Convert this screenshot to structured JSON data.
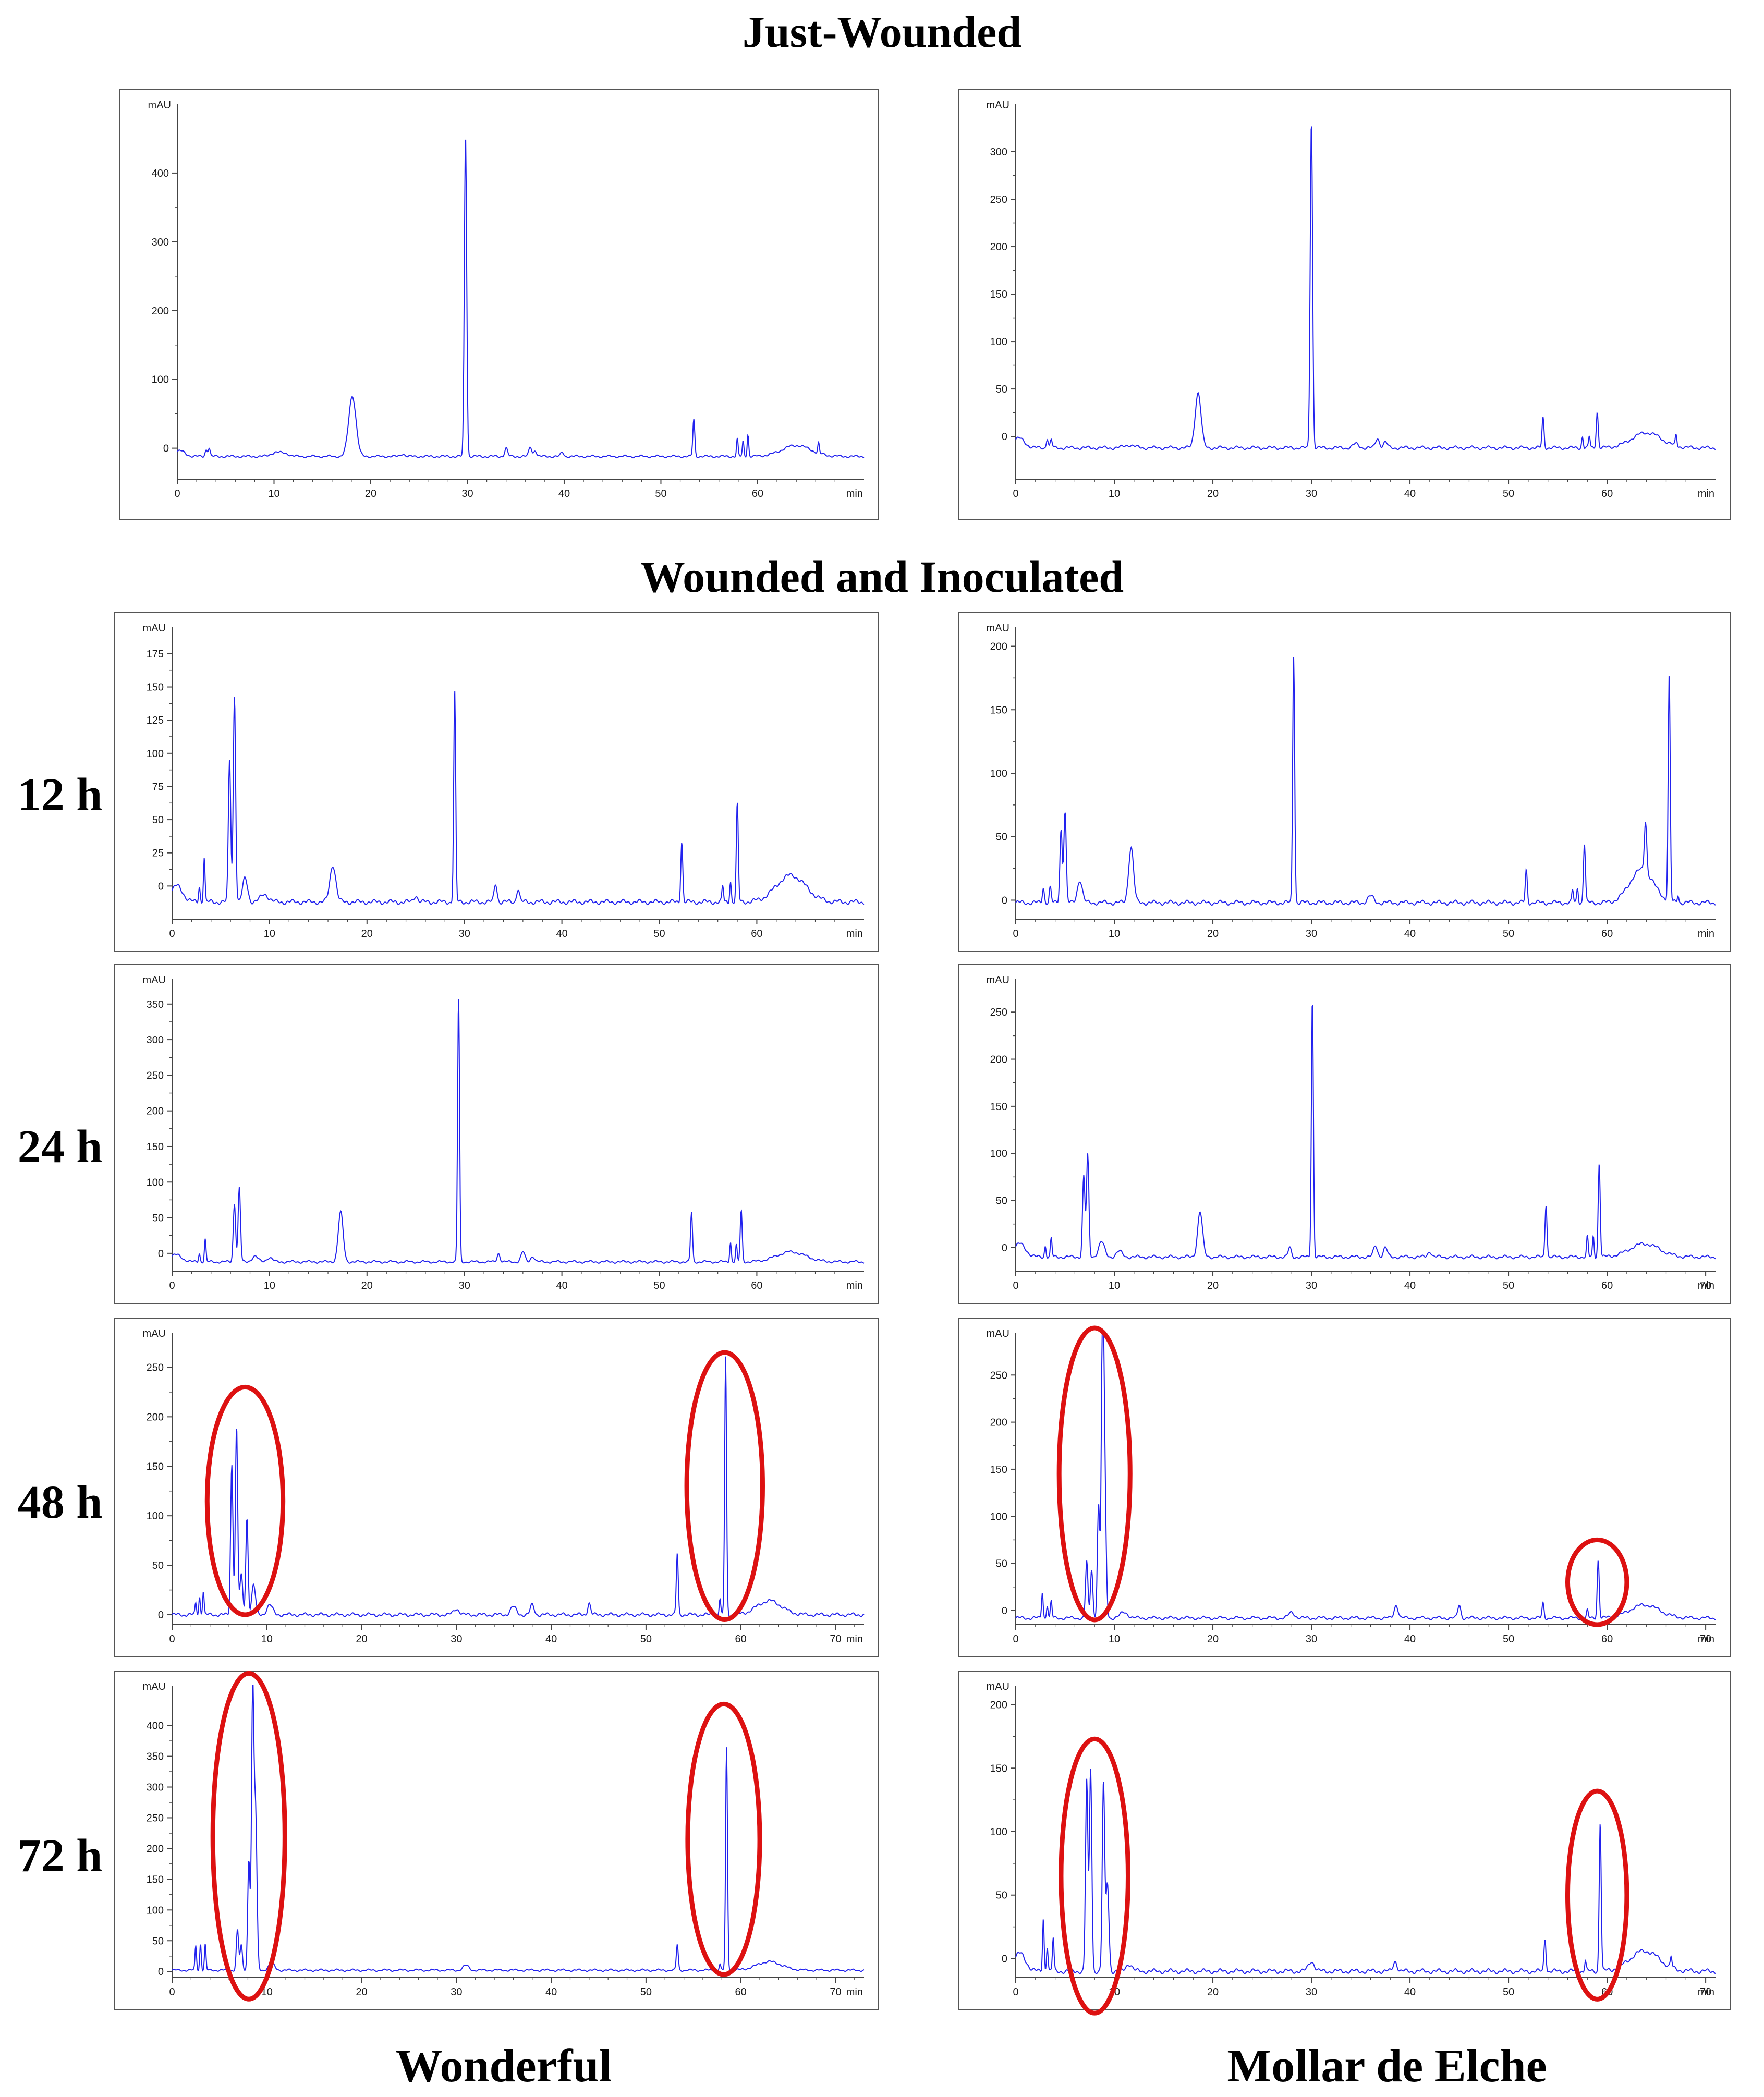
{
  "headers": {
    "just_wounded": "Just-Wounded",
    "wounded_inoculated": "Wounded and Inoculated"
  },
  "row_labels": [
    "12 h",
    "24 h",
    "48 h",
    "72 h"
  ],
  "column_labels": [
    "Wonderful",
    "Mollar de Elche"
  ],
  "colors": {
    "trace": "#2222ee",
    "highlight": "#dd1111",
    "axis": "#444444"
  },
  "chart_data": [
    {
      "id": "jw-wonderful",
      "type": "line",
      "title": "Just-Wounded / Wonderful",
      "xlabel": "min",
      "ylabel": "mAU",
      "xlim": [
        0,
        71
      ],
      "ylim": [
        -45,
        500
      ],
      "xticks": [
        0,
        10,
        20,
        30,
        40,
        50,
        60
      ],
      "yticks": [
        0,
        100,
        200,
        300,
        400
      ],
      "baseline": -12,
      "peaks": [
        [
          0.3,
          8,
          0.5
        ],
        [
          3.0,
          10,
          0.12
        ],
        [
          3.3,
          12,
          0.1
        ],
        [
          10.2,
          6,
          0.5
        ],
        [
          11.2,
          4,
          0.4
        ],
        [
          18.1,
          88,
          0.38
        ],
        [
          23.3,
          4,
          0.2
        ],
        [
          29.8,
          468,
          0.12
        ],
        [
          34.0,
          12,
          0.15
        ],
        [
          36.5,
          14,
          0.15
        ],
        [
          37.0,
          9,
          0.15
        ],
        [
          39.8,
          6,
          0.15
        ],
        [
          53.4,
          54,
          0.1
        ],
        [
          57.9,
          26,
          0.08
        ],
        [
          58.5,
          22,
          0.08
        ],
        [
          59.0,
          32,
          0.08
        ],
        [
          64.0,
          16,
          1.5
        ],
        [
          66.3,
          15,
          0.08
        ]
      ],
      "highlights": []
    },
    {
      "id": "jw-mollar",
      "type": "line",
      "title": "Just-Wounded / Mollar de Elche",
      "xlabel": "min",
      "ylabel": "mAU",
      "xlim": [
        0,
        71
      ],
      "ylim": [
        -45,
        350
      ],
      "xticks": [
        0,
        10,
        20,
        30,
        40,
        50,
        60
      ],
      "yticks": [
        0,
        50,
        100,
        150,
        200,
        250,
        300
      ],
      "baseline": -12,
      "peaks": [
        [
          0.3,
          10,
          0.6
        ],
        [
          3.2,
          10,
          0.1
        ],
        [
          3.6,
          8,
          0.1
        ],
        [
          11.5,
          3,
          0.5
        ],
        [
          18.5,
          58,
          0.3
        ],
        [
          30.0,
          346,
          0.12
        ],
        [
          34.5,
          4,
          0.3
        ],
        [
          36.7,
          10,
          0.2
        ],
        [
          37.5,
          6,
          0.2
        ],
        [
          53.5,
          32,
          0.1
        ],
        [
          57.5,
          12,
          0.08
        ],
        [
          58.2,
          12,
          0.08
        ],
        [
          59.0,
          38,
          0.1
        ],
        [
          64.0,
          16,
          1.5
        ],
        [
          67.0,
          12,
          0.08
        ]
      ],
      "highlights": []
    },
    {
      "id": "12h-wonderful",
      "type": "line",
      "title": "12 h / Wonderful",
      "xlabel": "min",
      "ylabel": "mAU",
      "xlim": [
        0,
        71
      ],
      "ylim": [
        -25,
        195
      ],
      "xticks": [
        0,
        10,
        20,
        30,
        40,
        50,
        60
      ],
      "yticks": [
        0,
        25,
        50,
        75,
        100,
        125,
        150,
        175
      ],
      "baseline": -12,
      "peaks": [
        [
          0.5,
          12,
          0.6
        ],
        [
          2.8,
          12,
          0.08
        ],
        [
          3.3,
          34,
          0.08
        ],
        [
          5.9,
          108,
          0.12
        ],
        [
          6.4,
          156,
          0.12
        ],
        [
          7.5,
          18,
          0.25
        ],
        [
          9.5,
          6,
          0.4
        ],
        [
          16.5,
          28,
          0.3
        ],
        [
          25.0,
          5,
          0.2
        ],
        [
          29.0,
          158,
          0.1
        ],
        [
          33.2,
          14,
          0.15
        ],
        [
          35.5,
          10,
          0.15
        ],
        [
          52.3,
          46,
          0.1
        ],
        [
          56.5,
          12,
          0.08
        ],
        [
          57.3,
          16,
          0.08
        ],
        [
          58.0,
          74,
          0.1
        ],
        [
          63.5,
          20,
          1.5
        ]
      ],
      "highlights": []
    },
    {
      "id": "12h-mollar",
      "type": "line",
      "title": "12 h / Mollar de Elche",
      "xlabel": "min",
      "ylabel": "mAU",
      "xlim": [
        0,
        71
      ],
      "ylim": [
        -15,
        215
      ],
      "xticks": [
        0,
        10,
        20,
        30,
        40,
        50,
        60
      ],
      "yticks": [
        0,
        50,
        100,
        150,
        200
      ],
      "baseline": -2,
      "peaks": [
        [
          2.8,
          12,
          0.1
        ],
        [
          3.5,
          12,
          0.1
        ],
        [
          4.6,
          58,
          0.12
        ],
        [
          5.0,
          72,
          0.12
        ],
        [
          6.5,
          18,
          0.25
        ],
        [
          11.7,
          44,
          0.25
        ],
        [
          28.2,
          195,
          0.1
        ],
        [
          36.0,
          5,
          0.3
        ],
        [
          51.8,
          26,
          0.1
        ],
        [
          56.5,
          10,
          0.08
        ],
        [
          57.0,
          12,
          0.08
        ],
        [
          57.7,
          47,
          0.1
        ],
        [
          63.5,
          26,
          1.2
        ],
        [
          63.9,
          40,
          0.12
        ],
        [
          66.3,
          178,
          0.1
        ],
        [
          67.2,
          6,
          0.08
        ]
      ],
      "highlights": []
    },
    {
      "id": "24h-wonderful",
      "type": "line",
      "title": "24 h / Wonderful",
      "xlabel": "min",
      "ylabel": "mAU",
      "xlim": [
        0,
        71
      ],
      "ylim": [
        -25,
        385
      ],
      "xticks": [
        0,
        10,
        20,
        30,
        40,
        50,
        60
      ],
      "yticks": [
        0,
        50,
        100,
        150,
        200,
        250,
        300,
        350
      ],
      "baseline": -12,
      "peaks": [
        [
          0.4,
          10,
          0.6
        ],
        [
          2.8,
          12,
          0.08
        ],
        [
          3.4,
          32,
          0.08
        ],
        [
          6.4,
          82,
          0.12
        ],
        [
          6.9,
          104,
          0.12
        ],
        [
          8.5,
          8,
          0.3
        ],
        [
          10.0,
          6,
          0.3
        ],
        [
          17.3,
          70,
          0.25
        ],
        [
          29.4,
          372,
          0.1
        ],
        [
          33.5,
          12,
          0.15
        ],
        [
          36.0,
          14,
          0.2
        ],
        [
          37.0,
          8,
          0.2
        ],
        [
          53.3,
          70,
          0.1
        ],
        [
          57.3,
          28,
          0.08
        ],
        [
          57.9,
          24,
          0.08
        ],
        [
          58.4,
          72,
          0.1
        ],
        [
          63.5,
          14,
          1.5
        ]
      ],
      "highlights": []
    },
    {
      "id": "24h-mollar",
      "type": "line",
      "title": "24 h / Mollar de Elche",
      "xlabel": "min",
      "ylabel": "mAU",
      "xlim": [
        0,
        71
      ],
      "ylim": [
        -25,
        285
      ],
      "xticks": [
        0,
        10,
        20,
        30,
        40,
        50,
        60,
        70
      ],
      "yticks": [
        0,
        50,
        100,
        150,
        200,
        250
      ],
      "baseline": -10,
      "peaks": [
        [
          0.4,
          14,
          0.6
        ],
        [
          3.0,
          12,
          0.08
        ],
        [
          3.6,
          20,
          0.08
        ],
        [
          6.9,
          86,
          0.12
        ],
        [
          7.3,
          108,
          0.12
        ],
        [
          8.7,
          16,
          0.3
        ],
        [
          10.5,
          6,
          0.3
        ],
        [
          18.7,
          48,
          0.25
        ],
        [
          30.1,
          276,
          0.1
        ],
        [
          27.8,
          10,
          0.15
        ],
        [
          36.5,
          12,
          0.2
        ],
        [
          37.5,
          10,
          0.2
        ],
        [
          42.0,
          6,
          0.2
        ],
        [
          53.8,
          56,
          0.1
        ],
        [
          58.0,
          22,
          0.08
        ],
        [
          58.6,
          22,
          0.08
        ],
        [
          59.2,
          100,
          0.1
        ],
        [
          63.8,
          14,
          1.5
        ]
      ],
      "highlights": []
    },
    {
      "id": "48h-wonderful",
      "type": "line",
      "title": "48 h / Wonderful",
      "xlabel": "min",
      "ylabel": "mAU",
      "xlim": [
        0,
        73
      ],
      "ylim": [
        -10,
        285
      ],
      "xticks": [
        0,
        10,
        20,
        30,
        40,
        50,
        60,
        70
      ],
      "yticks": [
        0,
        50,
        100,
        150,
        200,
        250
      ],
      "baseline": 0,
      "peaks": [
        [
          2.5,
          12,
          0.08
        ],
        [
          2.9,
          18,
          0.08
        ],
        [
          3.3,
          24,
          0.08
        ],
        [
          6.3,
          152,
          0.12
        ],
        [
          6.8,
          190,
          0.12
        ],
        [
          7.3,
          40,
          0.15
        ],
        [
          7.9,
          98,
          0.12
        ],
        [
          8.6,
          30,
          0.2
        ],
        [
          10.3,
          10,
          0.3
        ],
        [
          30.0,
          6,
          0.3
        ],
        [
          36.0,
          8,
          0.3
        ],
        [
          38.0,
          10,
          0.2
        ],
        [
          44.0,
          12,
          0.15
        ],
        [
          53.3,
          62,
          0.1
        ],
        [
          57.8,
          16,
          0.08
        ],
        [
          58.4,
          260,
          0.1
        ],
        [
          63.0,
          14,
          1.3
        ]
      ],
      "highlights": [
        [
          7.7,
          115,
          4.0,
          115
        ],
        [
          58.3,
          130,
          4.0,
          135
        ]
      ]
    },
    {
      "id": "48h-mollar",
      "type": "line",
      "title": "48 h / Mollar de Elche",
      "xlabel": "min",
      "ylabel": "mAU",
      "xlim": [
        0,
        71
      ],
      "ylim": [
        -15,
        295
      ],
      "xticks": [
        0,
        10,
        20,
        30,
        40,
        50,
        60,
        70
      ],
      "yticks": [
        0,
        50,
        100,
        150,
        200,
        250
      ],
      "baseline": -8,
      "peaks": [
        [
          2.7,
          28,
          0.08
        ],
        [
          3.2,
          14,
          0.08
        ],
        [
          3.6,
          18,
          0.08
        ],
        [
          7.2,
          60,
          0.12
        ],
        [
          7.7,
          52,
          0.12
        ],
        [
          8.4,
          120,
          0.12
        ],
        [
          8.8,
          285,
          0.12
        ],
        [
          9.0,
          160,
          0.15
        ],
        [
          11.0,
          6,
          0.4
        ],
        [
          28.0,
          6,
          0.3
        ],
        [
          38.6,
          14,
          0.2
        ],
        [
          45.0,
          14,
          0.15
        ],
        [
          53.5,
          16,
          0.1
        ],
        [
          58.0,
          8,
          0.08
        ],
        [
          59.1,
          62,
          0.1
        ],
        [
          63.8,
          14,
          1.5
        ]
      ],
      "highlights": [
        [
          8.0,
          145,
          3.6,
          155
        ],
        [
          59.0,
          30,
          3.0,
          45
        ]
      ]
    },
    {
      "id": "72h-wonderful",
      "type": "line",
      "title": "72 h / Wonderful",
      "xlabel": "min",
      "ylabel": "mAU",
      "xlim": [
        0,
        73
      ],
      "ylim": [
        -10,
        465
      ],
      "xticks": [
        0,
        10,
        20,
        30,
        40,
        50,
        60,
        70
      ],
      "yticks": [
        0,
        50,
        100,
        150,
        200,
        250,
        300,
        350,
        400
      ],
      "baseline": 2,
      "peaks": [
        [
          2.5,
          40,
          0.08
        ],
        [
          3.0,
          44,
          0.08
        ],
        [
          3.5,
          42,
          0.08
        ],
        [
          6.9,
          66,
          0.12
        ],
        [
          7.3,
          40,
          0.12
        ],
        [
          8.1,
          180,
          0.12
        ],
        [
          8.5,
          440,
          0.12
        ],
        [
          8.8,
          260,
          0.15
        ],
        [
          10.5,
          12,
          0.3
        ],
        [
          31.0,
          8,
          0.3
        ],
        [
          53.3,
          42,
          0.1
        ],
        [
          57.8,
          10,
          0.08
        ],
        [
          58.5,
          362,
          0.1
        ],
        [
          63.0,
          14,
          1.3
        ]
      ],
      "highlights": [
        [
          8.1,
          220,
          3.8,
          265
        ],
        [
          58.2,
          215,
          3.8,
          220
        ]
      ]
    },
    {
      "id": "72h-mollar",
      "type": "line",
      "title": "72 h / Mollar de Elche",
      "xlabel": "min",
      "ylabel": "mAU",
      "xlim": [
        0,
        71
      ],
      "ylim": [
        -15,
        215
      ],
      "xticks": [
        0,
        10,
        20,
        30,
        40,
        50,
        60,
        70
      ],
      "yticks": [
        0,
        50,
        100,
        150,
        200
      ],
      "baseline": -10,
      "peaks": [
        [
          0.4,
          14,
          0.6
        ],
        [
          2.8,
          42,
          0.08
        ],
        [
          3.2,
          20,
          0.08
        ],
        [
          3.8,
          26,
          0.08
        ],
        [
          7.2,
          150,
          0.12
        ],
        [
          7.6,
          160,
          0.12
        ],
        [
          8.9,
          148,
          0.12
        ],
        [
          9.3,
          70,
          0.15
        ],
        [
          11.5,
          6,
          0.3
        ],
        [
          30.0,
          8,
          0.3
        ],
        [
          38.5,
          8,
          0.2
        ],
        [
          53.7,
          26,
          0.1
        ],
        [
          57.8,
          8,
          0.08
        ],
        [
          59.3,
          118,
          0.1
        ],
        [
          63.8,
          16,
          1.5
        ],
        [
          66.5,
          8,
          0.08
        ]
      ],
      "highlights": [
        [
          8.0,
          65,
          3.4,
          108
        ],
        [
          59.0,
          50,
          3.0,
          82
        ]
      ]
    }
  ]
}
